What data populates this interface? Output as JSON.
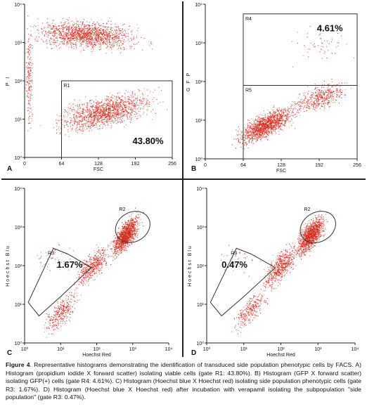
{
  "figure": {
    "panels": [
      {
        "id": "A",
        "letter": "A",
        "xlabel": "FSC",
        "ylabel": "P I",
        "x_scale": "linear",
        "x_ticks": [
          "0",
          "64",
          "128",
          "192",
          "256"
        ],
        "x_tick_values": [
          0,
          64,
          128,
          192,
          256
        ],
        "xlim": [
          0,
          256
        ],
        "y_scale": "log",
        "y_ticks": [
          "10⁰",
          "10¹",
          "10²",
          "10³",
          "10⁴"
        ],
        "y_tick_values": [
          0,
          1,
          2,
          3,
          4
        ],
        "ylim": [
          0,
          4
        ],
        "gates": [
          {
            "label": "R1",
            "shape": "rectangle",
            "x": [
              64,
              256
            ],
            "y": [
              0,
              2.0
            ]
          }
        ],
        "annotations": [
          {
            "text": "43.80%",
            "x": 214,
            "y": 0.35
          }
        ]
      },
      {
        "id": "B",
        "letter": "B",
        "xlabel": "FSC",
        "ylabel": "G F P",
        "x_scale": "linear",
        "x_ticks": [
          "0",
          "64",
          "128",
          "192",
          "256"
        ],
        "x_tick_values": [
          0,
          64,
          128,
          192,
          256
        ],
        "xlim": [
          0,
          256
        ],
        "y_scale": "log",
        "y_ticks": [
          "10⁰",
          "10¹",
          "10²",
          "10³",
          "10⁴"
        ],
        "y_tick_values": [
          0,
          1,
          2,
          3,
          4
        ],
        "ylim": [
          0,
          4
        ],
        "gates": [
          {
            "label": "R4",
            "shape": "rectangle",
            "x": [
              64,
              256
            ],
            "y": [
              1.9,
              3.75
            ]
          },
          {
            "label": "R5",
            "shape": "rectangle",
            "x": [
              64,
              256
            ],
            "y": [
              0,
              1.9
            ]
          }
        ],
        "annotations": [
          {
            "text": "4.61%",
            "x": 210,
            "y": 3.3
          }
        ]
      },
      {
        "id": "C",
        "letter": "C",
        "xlabel": "Hoechst Red",
        "ylabel": "Hoechst Blu",
        "x_scale": "log",
        "x_ticks": [
          "10⁰",
          "10¹",
          "10²",
          "10³",
          "10⁴"
        ],
        "x_tick_values": [
          0,
          1,
          2,
          3,
          4
        ],
        "xlim": [
          0,
          4
        ],
        "y_scale": "log",
        "y_ticks": [
          "10⁰",
          "10¹",
          "10²",
          "10³",
          "10⁴"
        ],
        "y_tick_values": [
          0,
          1,
          2,
          3,
          4
        ],
        "ylim": [
          0,
          4
        ],
        "gates": [
          {
            "label": "R2",
            "shape": "ellipse",
            "cx": 3.0,
            "cy": 3.0,
            "rx": 0.5,
            "ry": 0.38,
            "angle": 30
          },
          {
            "label": "R3",
            "shape": "polygon",
            "points": [
              [
                0.1,
                1.05
              ],
              [
                0.4,
                0.7
              ],
              [
                1.0,
                1.2
              ],
              [
                1.85,
                1.95
              ],
              [
                1.2,
                2.3
              ],
              [
                0.8,
                2.45
              ]
            ]
          }
        ],
        "annotations": [
          {
            "text": "1.67%",
            "x": 1.25,
            "y": 1.95
          }
        ]
      },
      {
        "id": "D",
        "letter": "D",
        "xlabel": "Hoechst Red",
        "ylabel": "Hoechst Blu",
        "x_scale": "log",
        "x_ticks": [
          "10⁰",
          "10¹",
          "10²",
          "10³",
          "10⁴"
        ],
        "x_tick_values": [
          0,
          1,
          2,
          3,
          4
        ],
        "xlim": [
          0,
          4
        ],
        "y_scale": "log",
        "y_ticks": [
          "10⁰",
          "10¹",
          "10²",
          "10³",
          "10⁴"
        ],
        "y_tick_values": [
          0,
          1,
          2,
          3,
          4
        ],
        "ylim": [
          0,
          4
        ],
        "gates": [
          {
            "label": "R2",
            "shape": "ellipse",
            "cx": 3.0,
            "cy": 3.0,
            "rx": 0.5,
            "ry": 0.38,
            "angle": 30
          },
          {
            "label": "R3",
            "shape": "polygon",
            "points": [
              [
                0.1,
                1.05
              ],
              [
                0.4,
                0.7
              ],
              [
                1.0,
                1.2
              ],
              [
                1.85,
                1.95
              ],
              [
                1.2,
                2.3
              ],
              [
                0.8,
                2.45
              ]
            ]
          }
        ],
        "annotations": [
          {
            "text": "0.47%",
            "x": 0.75,
            "y": 1.95
          }
        ]
      }
    ],
    "dot_color": "#d42a1c",
    "gate_color": "#333333"
  },
  "caption": {
    "label": "Figure 4",
    "text": ". Representative histograms demonstrating the identification of transduced side population phenotypic cells by FACS. A) Histogram (propidium iodide X forward scatter) isolating viable cells (gate R1: 43.80%). B) Histogram (GFP X forward scatter) isolating GFP(+) cells (gate R4: 4.61%). C) Histogram (Hoechst blue X Hoechst red) isolating side population phenotypic cells (gate R3: 1.67%). D) Histogram (Hoechst blue X Hoechst red) after incubation with verapamil isolating the subpopulation \"side population\" (gate R3: 0.47%)."
  }
}
